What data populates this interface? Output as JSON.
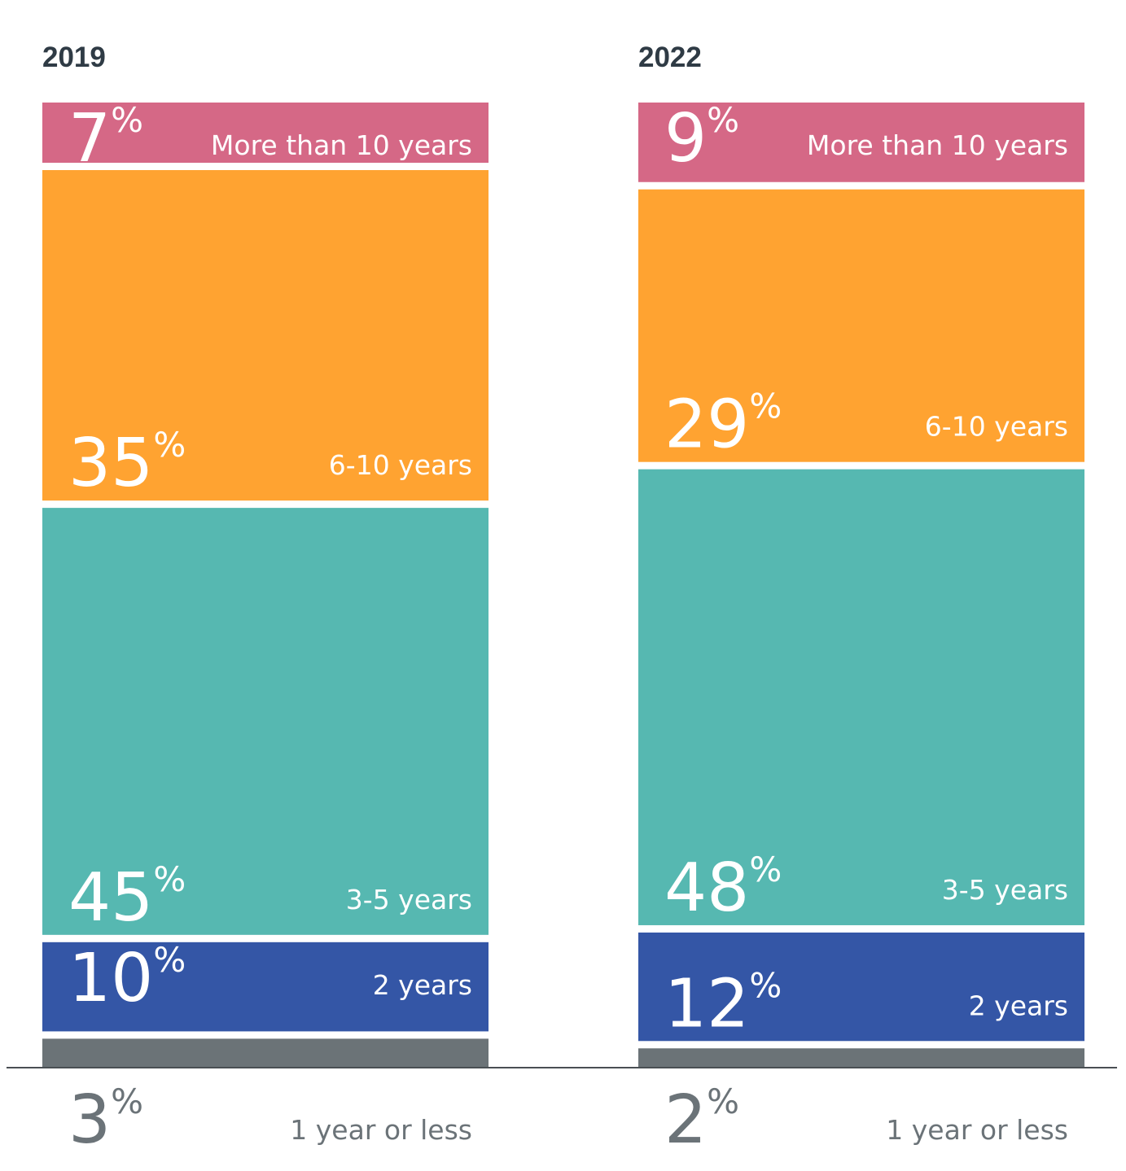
{
  "chart_data": {
    "type": "bar",
    "stacked": true,
    "unit": "%",
    "categories": [
      "2019",
      "2022"
    ],
    "series": [
      {
        "name": "1 year or less",
        "color": "#6b7377",
        "values": [
          3,
          2
        ]
      },
      {
        "name": "2 years",
        "color": "#3456a6",
        "values": [
          10,
          12
        ]
      },
      {
        "name": "3-5 years",
        "color": "#56b8b1",
        "values": [
          45,
          48
        ]
      },
      {
        "name": "6-10 years",
        "color": "#ffa331",
        "values": [
          35,
          29
        ]
      },
      {
        "name": "More than 10 years",
        "color": "#d56886",
        "values": [
          7,
          9
        ]
      }
    ],
    "ylim": [
      0,
      100
    ],
    "legend": "inline"
  }
}
